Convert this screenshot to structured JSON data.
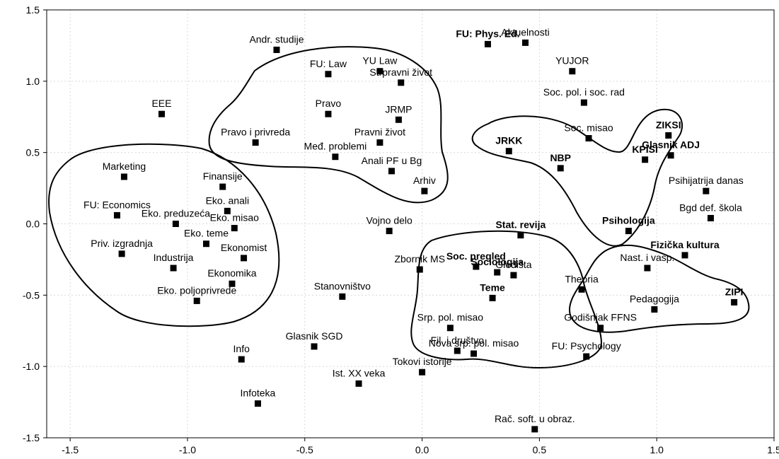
{
  "chart_data": {
    "type": "scatter",
    "title": "",
    "xlabel": "",
    "ylabel": "",
    "xlim": [
      -1.6,
      1.5
    ],
    "ylim": [
      -1.5,
      1.5
    ],
    "xticks": [
      -1.5,
      -1.0,
      -0.5,
      0.0,
      0.5,
      1.0,
      1.5
    ],
    "yticks": [
      -1.5,
      -1.0,
      -0.5,
      0.0,
      0.5,
      1.0,
      1.5
    ],
    "xtick_labels": [
      "-1.5",
      "-1.0",
      "-0.5",
      "0.0",
      "0.5",
      "1.0",
      "1.5"
    ],
    "ytick_labels": [
      "-1.5",
      "-1.0",
      "-0.5",
      "0.0",
      "0.5",
      "1.0",
      "1.5"
    ],
    "grid": true,
    "marker_color": "#000000",
    "points": [
      {
        "label": "Andr. studije",
        "x": -0.62,
        "y": 1.22,
        "bold": false
      },
      {
        "label": "FU: Phys. Ed.",
        "x": 0.28,
        "y": 1.26,
        "bold": true
      },
      {
        "label": "Aktuelnosti",
        "x": 0.44,
        "y": 1.27,
        "bold": false
      },
      {
        "label": "FU: Law",
        "x": -0.4,
        "y": 1.05,
        "bold": false
      },
      {
        "label": "YU Law",
        "x": -0.18,
        "y": 1.07,
        "bold": false
      },
      {
        "label": "Strpravni život",
        "x": -0.09,
        "y": 0.99,
        "bold": false
      },
      {
        "label": "YUJOR",
        "x": 0.64,
        "y": 1.07,
        "bold": false
      },
      {
        "label": "EEE",
        "x": -1.11,
        "y": 0.77,
        "bold": false
      },
      {
        "label": "Pravo",
        "x": -0.4,
        "y": 0.77,
        "bold": false
      },
      {
        "label": "JRMP",
        "x": -0.1,
        "y": 0.73,
        "bold": false
      },
      {
        "label": "Soc. pol. i soc. rad",
        "x": 0.69,
        "y": 0.85,
        "bold": false
      },
      {
        "label": "Pravo i privreda",
        "x": -0.71,
        "y": 0.57,
        "bold": false
      },
      {
        "label": "Pravni život",
        "x": -0.18,
        "y": 0.57,
        "bold": false
      },
      {
        "label": "Soc. misao",
        "x": 0.71,
        "y": 0.6,
        "bold": false
      },
      {
        "label": "ZIKSI",
        "x": 1.05,
        "y": 0.62,
        "bold": true
      },
      {
        "label": "JRKK",
        "x": 0.37,
        "y": 0.51,
        "bold": true
      },
      {
        "label": "Glasnik ADJ",
        "x": 1.06,
        "y": 0.48,
        "bold": true
      },
      {
        "label": "KPISI",
        "x": 0.95,
        "y": 0.45,
        "bold": true
      },
      {
        "label": "Međ. problemi",
        "x": -0.37,
        "y": 0.47,
        "bold": false
      },
      {
        "label": "NBP",
        "x": 0.59,
        "y": 0.39,
        "bold": true
      },
      {
        "label": "Anali PF u Bg",
        "x": -0.13,
        "y": 0.37,
        "bold": false
      },
      {
        "label": "Marketing",
        "x": -1.27,
        "y": 0.33,
        "bold": false
      },
      {
        "label": "Finansije",
        "x": -0.85,
        "y": 0.26,
        "bold": false
      },
      {
        "label": "Arhiv",
        "x": 0.01,
        "y": 0.23,
        "bold": false
      },
      {
        "label": "Psihijatrija danas",
        "x": 1.21,
        "y": 0.23,
        "bold": false
      },
      {
        "label": "Eko. anali",
        "x": -0.83,
        "y": 0.09,
        "bold": false
      },
      {
        "label": "FU: Economics",
        "x": -1.3,
        "y": 0.06,
        "bold": false
      },
      {
        "label": "Bgd def. škola",
        "x": 1.23,
        "y": 0.04,
        "bold": false
      },
      {
        "label": "Eko. preduzeća",
        "x": -1.05,
        "y": 0.0,
        "bold": false
      },
      {
        "label": "Eko. misao",
        "x": -0.8,
        "y": -0.03,
        "bold": false
      },
      {
        "label": "Vojno delo",
        "x": -0.14,
        "y": -0.05,
        "bold": false
      },
      {
        "label": "Psihologija",
        "x": 0.88,
        "y": -0.05,
        "bold": true
      },
      {
        "label": "Stat. revija",
        "x": 0.42,
        "y": -0.08,
        "bold": true
      },
      {
        "label": "Eko. teme",
        "x": -0.92,
        "y": -0.14,
        "bold": false
      },
      {
        "label": "Ekonomist",
        "x": -0.76,
        "y": -0.24,
        "bold": false
      },
      {
        "label": "Priv. izgradnja",
        "x": -1.28,
        "y": -0.21,
        "bold": false
      },
      {
        "label": "Fizička kultura",
        "x": 1.12,
        "y": -0.22,
        "bold": true
      },
      {
        "label": "Industrija",
        "x": -1.06,
        "y": -0.31,
        "bold": false
      },
      {
        "label": "Nast. i vasp.",
        "x": 0.96,
        "y": -0.31,
        "bold": false
      },
      {
        "label": "Zbornik MS",
        "x": -0.01,
        "y": -0.32,
        "bold": false
      },
      {
        "label": "Soc. pregled",
        "x": 0.23,
        "y": -0.3,
        "bold": true
      },
      {
        "label": "Sociologija",
        "x": 0.32,
        "y": -0.34,
        "bold": true
      },
      {
        "label": "Gledišta",
        "x": 0.39,
        "y": -0.36,
        "bold": false
      },
      {
        "label": "Ekonomika",
        "x": -0.81,
        "y": -0.42,
        "bold": false
      },
      {
        "label": "Theoria",
        "x": 0.68,
        "y": -0.46,
        "bold": false
      },
      {
        "label": "Stanovništvo",
        "x": -0.34,
        "y": -0.51,
        "bold": false
      },
      {
        "label": "Teme",
        "x": 0.3,
        "y": -0.52,
        "bold": true
      },
      {
        "label": "Eko. poljoprivrede",
        "x": -0.96,
        "y": -0.54,
        "bold": false
      },
      {
        "label": "ZIPI",
        "x": 1.33,
        "y": -0.55,
        "bold": true
      },
      {
        "label": "Pedagogija",
        "x": 0.99,
        "y": -0.6,
        "bold": false
      },
      {
        "label": "Srp. pol. misao",
        "x": 0.12,
        "y": -0.73,
        "bold": false
      },
      {
        "label": "Godišnjak FFNS",
        "x": 0.76,
        "y": -0.73,
        "bold": false
      },
      {
        "label": "Glasnik SGD",
        "x": -0.46,
        "y": -0.86,
        "bold": false
      },
      {
        "label": "Fil. i društvo",
        "x": 0.15,
        "y": -0.89,
        "bold": false
      },
      {
        "label": "Nova srp. pol. misao",
        "x": 0.22,
        "y": -0.91,
        "bold": false
      },
      {
        "label": "FU: Psychology",
        "x": 0.7,
        "y": -0.93,
        "bold": false
      },
      {
        "label": "Info",
        "x": -0.77,
        "y": -0.95,
        "bold": false
      },
      {
        "label": "Tokovi istorije",
        "x": 0.0,
        "y": -1.04,
        "bold": false
      },
      {
        "label": "Ist. XX veka",
        "x": -0.27,
        "y": -1.12,
        "bold": false
      },
      {
        "label": "Infoteka",
        "x": -0.7,
        "y": -1.26,
        "bold": false
      },
      {
        "label": "Rač. soft. u obraz.",
        "x": 0.48,
        "y": -1.44,
        "bold": false
      }
    ]
  }
}
